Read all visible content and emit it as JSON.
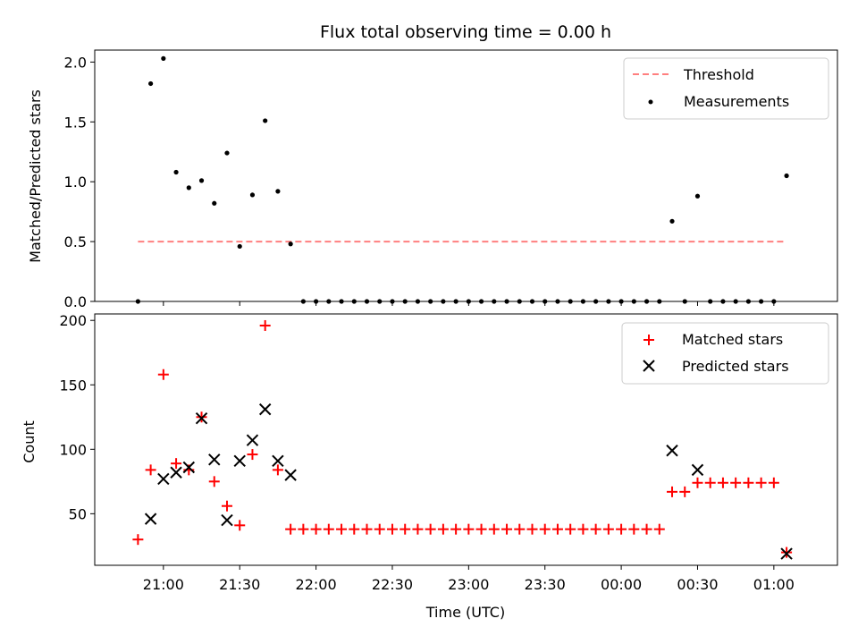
{
  "chart_data": [
    {
      "type": "scatter",
      "title": "Flux total observing time = 0.00 h",
      "xlabel": "",
      "ylabel": "Matched/Predicted stars",
      "ylim": [
        0,
        2.1
      ],
      "yticks": [
        0.0,
        0.5,
        1.0,
        1.5,
        2.0
      ],
      "ytick_labels": [
        "0.0",
        "0.5",
        "1.0",
        "1.5",
        "2.0"
      ],
      "x_time_range": [
        "20:33",
        "01:25"
      ],
      "legend": "top-right",
      "series": [
        {
          "name": "Threshold",
          "kind": "dashed-line",
          "color": "#ff7f7f",
          "x": [
            "20:50",
            "01:05"
          ],
          "y": [
            0.5,
            0.5
          ]
        },
        {
          "name": "Measurements",
          "kind": "dots",
          "color": "#000000",
          "x": [
            "20:50",
            "20:55",
            "21:00",
            "21:05",
            "21:10",
            "21:15",
            "21:20",
            "21:25",
            "21:30",
            "21:35",
            "21:40",
            "21:45",
            "21:50",
            "21:55",
            "22:00",
            "22:05",
            "22:10",
            "22:15",
            "22:20",
            "22:25",
            "22:30",
            "22:35",
            "22:40",
            "22:45",
            "22:50",
            "22:55",
            "23:00",
            "23:05",
            "23:10",
            "23:15",
            "23:20",
            "23:25",
            "23:30",
            "23:35",
            "23:40",
            "23:45",
            "23:50",
            "23:55",
            "00:00",
            "00:05",
            "00:10",
            "00:15",
            "00:20",
            "00:25",
            "00:30",
            "00:35",
            "00:40",
            "00:45",
            "00:50",
            "00:55",
            "01:00",
            "01:05"
          ],
          "y": [
            0,
            1.82,
            2.03,
            1.08,
            0.95,
            1.01,
            0.82,
            1.24,
            0.46,
            0.89,
            1.51,
            0.92,
            0.48,
            0,
            0,
            0,
            0,
            0,
            0,
            0,
            0,
            0,
            0,
            0,
            0,
            0,
            0,
            0,
            0,
            0,
            0,
            0,
            0,
            0,
            0,
            0,
            0,
            0,
            0,
            0,
            0,
            0,
            0.67,
            0,
            0.88,
            0,
            0,
            0,
            0,
            0,
            0,
            1.05
          ]
        }
      ]
    },
    {
      "type": "scatter",
      "title": "",
      "xlabel": "Time (UTC)",
      "ylabel": "Count",
      "ylim": [
        10,
        205
      ],
      "yticks": [
        50,
        100,
        150,
        200
      ],
      "ytick_labels": [
        "50",
        "100",
        "150",
        "200"
      ],
      "xticks": [
        "21:00",
        "21:30",
        "22:00",
        "22:30",
        "23:00",
        "23:30",
        "00:00",
        "00:30",
        "01:00"
      ],
      "xtick_labels": [
        "21:00",
        "21:30",
        "22:00",
        "22:30",
        "23:00",
        "23:30",
        "00:00",
        "00:30",
        "01:00"
      ],
      "x_time_range": [
        "20:33",
        "01:25"
      ],
      "legend": "top-right",
      "series": [
        {
          "name": "Matched stars",
          "kind": "plus",
          "color": "#ff0000",
          "x": [
            "20:50",
            "20:55",
            "21:00",
            "21:05",
            "21:10",
            "21:15",
            "21:20",
            "21:25",
            "21:30",
            "21:35",
            "21:40",
            "21:45",
            "21:50",
            "21:55",
            "22:00",
            "22:05",
            "22:10",
            "22:15",
            "22:20",
            "22:25",
            "22:30",
            "22:35",
            "22:40",
            "22:45",
            "22:50",
            "22:55",
            "23:00",
            "23:05",
            "23:10",
            "23:15",
            "23:20",
            "23:25",
            "23:30",
            "23:35",
            "23:40",
            "23:45",
            "23:50",
            "23:55",
            "00:00",
            "00:05",
            "00:10",
            "00:15",
            "00:20",
            "00:25",
            "00:30",
            "00:35",
            "00:40",
            "00:45",
            "00:50",
            "00:55",
            "01:00",
            "01:05"
          ],
          "y": [
            30,
            84,
            158,
            89,
            84,
            125,
            75,
            56,
            41,
            96,
            196,
            84,
            38,
            38,
            38,
            38,
            38,
            38,
            38,
            38,
            38,
            38,
            38,
            38,
            38,
            38,
            38,
            38,
            38,
            38,
            38,
            38,
            38,
            38,
            38,
            38,
            38,
            38,
            38,
            38,
            38,
            38,
            67,
            67,
            74,
            74,
            74,
            74,
            74,
            74,
            74,
            20
          ]
        },
        {
          "name": "Predicted stars",
          "kind": "x",
          "color": "#000000",
          "x": [
            "20:55",
            "21:00",
            "21:05",
            "21:10",
            "21:15",
            "21:20",
            "21:25",
            "21:30",
            "21:35",
            "21:40",
            "21:45",
            "21:50",
            "00:20",
            "00:30",
            "01:05"
          ],
          "y": [
            46,
            77,
            82,
            86,
            124,
            92,
            45,
            91,
            107,
            131,
            91,
            80,
            99,
            84,
            19
          ]
        }
      ]
    }
  ]
}
